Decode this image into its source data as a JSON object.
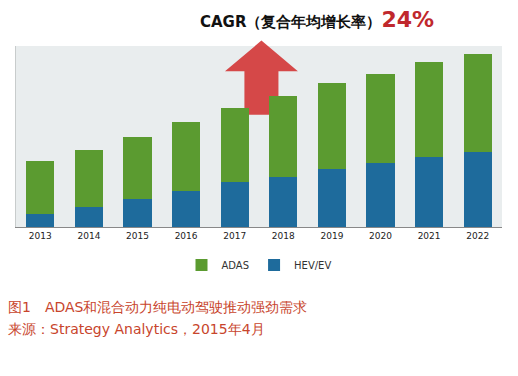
{
  "chart_data": {
    "type": "bar",
    "stacked": true,
    "title": "CAGR（复合年均增长率）",
    "annotations": [
      "24%"
    ],
    "caption": [
      "图1　ADAS和混合动力纯电动驾驶推动强劲需求",
      "来源：Strategy Analytics，2015年4月"
    ],
    "categories": [
      "2013",
      "2014",
      "2015",
      "2016",
      "2017",
      "2018",
      "2019",
      "2020",
      "2021",
      "2022"
    ],
    "series": [
      {
        "name": "ADAS",
        "color": "#5b9b30",
        "values": [
          55,
          60,
          65,
          72,
          78,
          85,
          90,
          94,
          100,
          103
        ]
      },
      {
        "name": "HEV/EV",
        "color": "#1e6b9c",
        "values": [
          14,
          21,
          29,
          38,
          47,
          53,
          61,
          67,
          73,
          79
        ]
      }
    ],
    "ylim": [
      0,
      190
    ],
    "tick_labels": "x",
    "legend": "bottom",
    "grid": false
  }
}
